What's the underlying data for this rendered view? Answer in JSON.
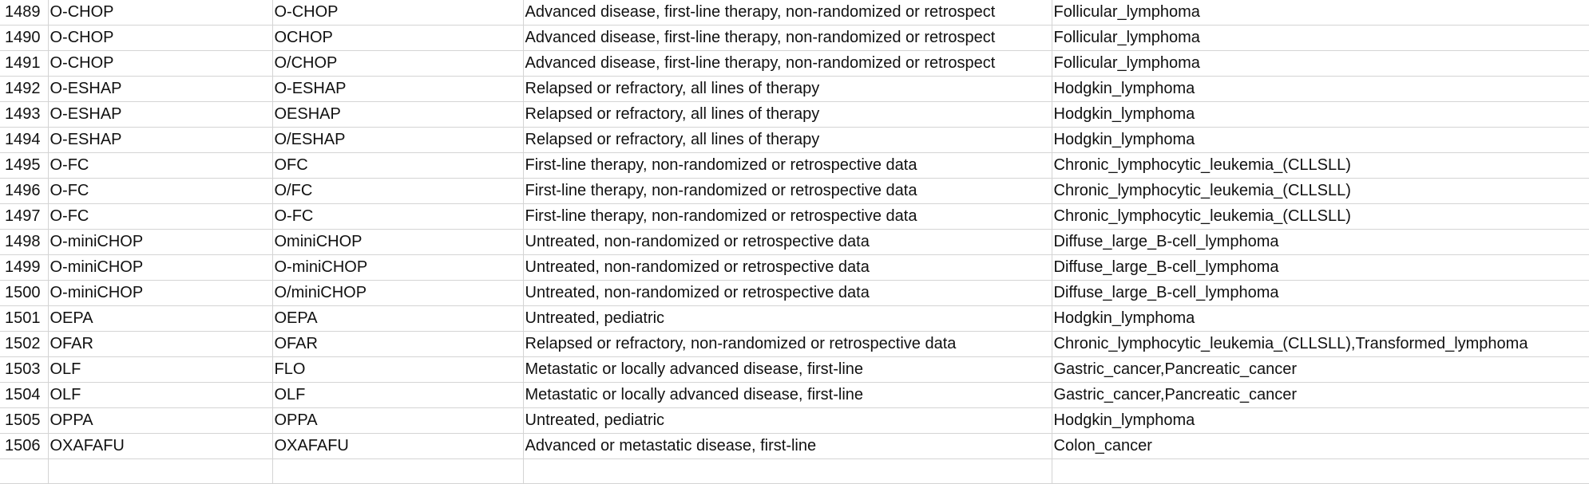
{
  "sheet": {
    "rows": [
      {
        "num": "1489",
        "a": "O-CHOP",
        "b": "O-CHOP",
        "c": "Advanced disease, first-line therapy, non-randomized or retrospect",
        "d": "Follicular_lymphoma"
      },
      {
        "num": "1490",
        "a": "O-CHOP",
        "b": "OCHOP",
        "c": "Advanced disease, first-line therapy, non-randomized or retrospect",
        "d": "Follicular_lymphoma"
      },
      {
        "num": "1491",
        "a": "O-CHOP",
        "b": "O/CHOP",
        "c": "Advanced disease, first-line therapy, non-randomized or retrospect",
        "d": "Follicular_lymphoma"
      },
      {
        "num": "1492",
        "a": "O-ESHAP",
        "b": "O-ESHAP",
        "c": "Relapsed or refractory, all lines of therapy",
        "d": "Hodgkin_lymphoma"
      },
      {
        "num": "1493",
        "a": "O-ESHAP",
        "b": "OESHAP",
        "c": "Relapsed or refractory, all lines of therapy",
        "d": "Hodgkin_lymphoma"
      },
      {
        "num": "1494",
        "a": "O-ESHAP",
        "b": "O/ESHAP",
        "c": "Relapsed or refractory, all lines of therapy",
        "d": "Hodgkin_lymphoma"
      },
      {
        "num": "1495",
        "a": "O-FC",
        "b": "OFC",
        "c": "First-line therapy, non-randomized or retrospective data",
        "d": "Chronic_lymphocytic_leukemia_(CLLSLL)"
      },
      {
        "num": "1496",
        "a": "O-FC",
        "b": "O/FC",
        "c": "First-line therapy, non-randomized or retrospective data",
        "d": "Chronic_lymphocytic_leukemia_(CLLSLL)"
      },
      {
        "num": "1497",
        "a": "O-FC",
        "b": "O-FC",
        "c": "First-line therapy, non-randomized or retrospective data",
        "d": "Chronic_lymphocytic_leukemia_(CLLSLL)"
      },
      {
        "num": "1498",
        "a": "O-miniCHOP",
        "b": "OminiCHOP",
        "c": "Untreated, non-randomized or retrospective data",
        "d": "Diffuse_large_B-cell_lymphoma"
      },
      {
        "num": "1499",
        "a": "O-miniCHOP",
        "b": "O-miniCHOP",
        "c": "Untreated, non-randomized or retrospective data",
        "d": "Diffuse_large_B-cell_lymphoma"
      },
      {
        "num": "1500",
        "a": "O-miniCHOP",
        "b": "O/miniCHOP",
        "c": "Untreated, non-randomized or retrospective data",
        "d": "Diffuse_large_B-cell_lymphoma"
      },
      {
        "num": "1501",
        "a": "OEPA",
        "b": "OEPA",
        "c": "Untreated, pediatric",
        "d": "Hodgkin_lymphoma"
      },
      {
        "num": "1502",
        "a": "OFAR",
        "b": "OFAR",
        "c": "Relapsed or refractory, non-randomized or retrospective data",
        "d": "Chronic_lymphocytic_leukemia_(CLLSLL),Transformed_lymphoma"
      },
      {
        "num": "1503",
        "a": "OLF",
        "b": "FLO",
        "c": "Metastatic or locally advanced disease, first-line",
        "d": "Gastric_cancer,Pancreatic_cancer"
      },
      {
        "num": "1504",
        "a": "OLF",
        "b": "OLF",
        "c": "Metastatic or locally advanced disease, first-line",
        "d": "Gastric_cancer,Pancreatic_cancer"
      },
      {
        "num": "1505",
        "a": "OPPA",
        "b": "OPPA",
        "c": "Untreated, pediatric",
        "d": "Hodgkin_lymphoma"
      },
      {
        "num": "1506",
        "a": "OXAFAFU",
        "b": "OXAFAFU",
        "c": "Advanced or metastatic disease, first-line",
        "d": "Colon_cancer"
      },
      {
        "num": "",
        "a": "",
        "b": "",
        "c": "",
        "d": ""
      }
    ]
  }
}
